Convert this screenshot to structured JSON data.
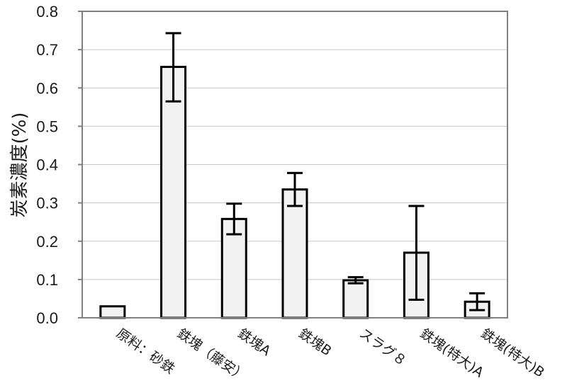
{
  "chart_data": {
    "type": "bar",
    "title": "",
    "xlabel": "",
    "ylabel": "炭素濃度(%)",
    "ylim": [
      0,
      0.8
    ],
    "yticks": [
      "0.0",
      "0.1",
      "0.2",
      "0.3",
      "0.4",
      "0.5",
      "0.6",
      "0.7",
      "0.8"
    ],
    "categories": [
      "原料：砂鉄",
      "鉄塊（藤安）",
      "鉄塊A",
      "鉄塊B",
      "スラグ８",
      "鉄塊(特大)A",
      "鉄塊(特大)B"
    ],
    "values": [
      0.03,
      0.655,
      0.258,
      0.335,
      0.098,
      0.17,
      0.042
    ],
    "error_low": [
      null,
      0.565,
      0.218,
      0.292,
      0.09,
      0.047,
      0.02
    ],
    "error_high": [
      null,
      0.743,
      0.298,
      0.378,
      0.106,
      0.292,
      0.064
    ],
    "grid": true,
    "legend": "none",
    "colors": {
      "bar_fill": "#f2f2f2",
      "bar_stroke": "#000000",
      "grid": "#c8c8c8",
      "frame": "#808080"
    }
  }
}
